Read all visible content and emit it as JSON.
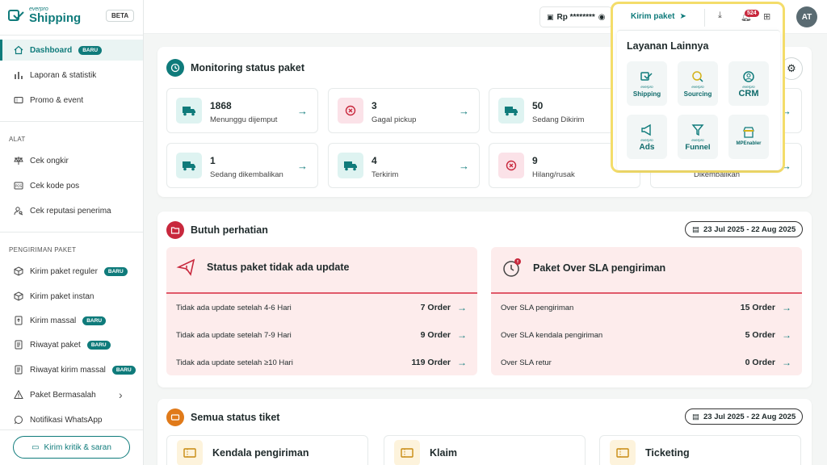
{
  "brand": {
    "small": "everpro",
    "name": "Shipping",
    "beta": "BETA"
  },
  "sidebar": {
    "items": [
      {
        "label": "Dashboard",
        "badge": "BARU"
      },
      {
        "label": "Laporan & statistik"
      },
      {
        "label": "Promo & event"
      }
    ],
    "alat_title": "ALAT",
    "alat": [
      {
        "label": "Cek ongkir"
      },
      {
        "label": "Cek kode pos"
      },
      {
        "label": "Cek reputasi penerima"
      }
    ],
    "pengiriman_title": "PENGIRIMAN PAKET",
    "pengiriman": [
      {
        "label": "Kirim paket reguler",
        "badge": "BARU"
      },
      {
        "label": "Kirim paket instan"
      },
      {
        "label": "Kirim massal",
        "badge": "BARU"
      },
      {
        "label": "Riwayat paket",
        "badge": "BARU"
      },
      {
        "label": "Riwayat kirim massal",
        "badge": "BARU"
      },
      {
        "label": "Paket Bermasalah"
      },
      {
        "label": "Notifikasi WhatsApp"
      }
    ],
    "feedback": "Kirim kritik & saran"
  },
  "header": {
    "balance": "Rp ********",
    "kirim": "Kirim paket",
    "notif_count": "524",
    "avatar": "AT"
  },
  "popup": {
    "title": "Layanan Lainnya",
    "services": [
      {
        "small": "everpro",
        "name": "Shipping"
      },
      {
        "small": "everpro",
        "name": "Sourcing"
      },
      {
        "small": "everpro",
        "name": "CRM"
      },
      {
        "small": "everpro",
        "name": "Ads"
      },
      {
        "small": "everpro",
        "name": "Funnel"
      },
      {
        "small": "everpro",
        "name": "MPEnabler"
      }
    ]
  },
  "monitoring": {
    "title": "Monitoring status paket",
    "stats": [
      {
        "num": "1868",
        "label": "Menunggu dijemput"
      },
      {
        "num": "3",
        "label": "Gagal pickup"
      },
      {
        "num": "50",
        "label": "Sedang Dikirim"
      },
      {
        "num": "1",
        "label": "Sedang dikembalikan"
      },
      {
        "num": "4",
        "label": "Terkirim"
      },
      {
        "num": "9",
        "label": "Hilang/rusak"
      },
      {
        "label": "Dikembalikan"
      }
    ]
  },
  "perhatian": {
    "title": "Butuh perhatian",
    "date": "23 Jul 2025 - 22 Aug 2025",
    "left": {
      "title": "Status paket tidak ada update",
      "rows": [
        {
          "label": "Tidak ada update setelah 4-6 Hari",
          "value": "7 Order"
        },
        {
          "label": "Tidak ada update setelah 7-9 Hari",
          "value": "9 Order"
        },
        {
          "label": "Tidak ada update setelah ≥10 Hari",
          "value": "119 Order"
        }
      ]
    },
    "right": {
      "title": "Paket Over SLA pengiriman",
      "rows": [
        {
          "label": "Over SLA pengiriman",
          "value": "15 Order"
        },
        {
          "label": "Over SLA kendala pengiriman",
          "value": "5 Order"
        },
        {
          "label": "Over SLA retur",
          "value": "0 Order"
        }
      ]
    }
  },
  "tiket": {
    "title": "Semua status tiket",
    "date": "23 Jul 2025 - 22 Aug 2025",
    "cards": [
      {
        "label": "Kendala pengiriman"
      },
      {
        "label": "Klaim"
      },
      {
        "label": "Ticketing"
      }
    ]
  },
  "colors": {
    "accent": "#0f7b7b",
    "danger": "#e0596a",
    "highlight": "#f4dd6a"
  }
}
